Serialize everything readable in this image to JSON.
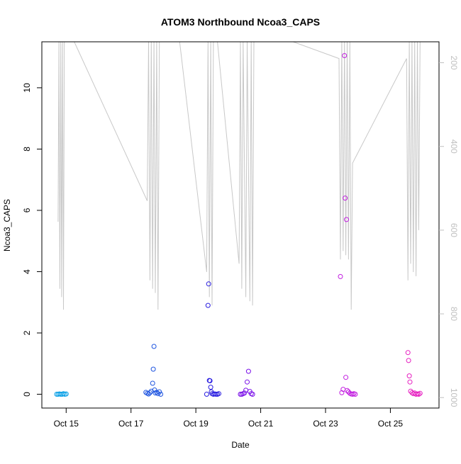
{
  "chart_data": {
    "type": "scatter",
    "title": "ATOM3 Northbound Ncoa3_CAPS",
    "xlabel": "Date",
    "ylabel": "Ncoa3_CAPS",
    "xlim": [
      "2018-10-14 06:00",
      "2018-10-26 12:00"
    ],
    "ylim": [
      -0.45,
      11.5
    ],
    "yticks": [
      0,
      2,
      4,
      6,
      8,
      10
    ],
    "xticks": [
      {
        "label": "Oct 15",
        "date": "2018-10-15"
      },
      {
        "label": "Oct 17",
        "date": "2018-10-17"
      },
      {
        "label": "Oct 19",
        "date": "2018-10-19"
      },
      {
        "label": "Oct 21",
        "date": "2018-10-21"
      },
      {
        "label": "Oct 23",
        "date": "2018-10-23"
      },
      {
        "label": "Oct 25",
        "date": "2018-10-25"
      }
    ],
    "y2lim": [
      1025,
      150
    ],
    "y2ticks": [
      200,
      400,
      600,
      800,
      1000
    ],
    "grid": false,
    "series": [
      {
        "color": "#0ba0e6",
        "points": [
          [
            "2018-10-14 17:00",
            0.0
          ],
          [
            "2018-10-14 18:00",
            0.0
          ],
          [
            "2018-10-14 19:00",
            0.01
          ],
          [
            "2018-10-14 20:00",
            0.0
          ],
          [
            "2018-10-14 21:00",
            0.0
          ],
          [
            "2018-10-14 22:00",
            0.02
          ],
          [
            "2018-10-14 23:00",
            0.0
          ],
          [
            "2018-10-15 00:00",
            0.01
          ]
        ]
      },
      {
        "color": "#1f55e0",
        "points": [
          [
            "2018-10-17 11:00",
            0.06
          ],
          [
            "2018-10-17 12:00",
            0.03
          ],
          [
            "2018-10-17 13:00",
            0.01
          ],
          [
            "2018-10-17 14:00",
            0.05
          ],
          [
            "2018-10-17 15:00",
            0.1
          ],
          [
            "2018-10-17 16:00",
            0.36
          ],
          [
            "2018-10-17 16:30",
            0.82
          ],
          [
            "2018-10-17 17:00",
            1.56
          ],
          [
            "2018-10-17 17:30",
            0.14
          ],
          [
            "2018-10-17 18:00",
            0.04
          ],
          [
            "2018-10-17 19:00",
            0.06
          ],
          [
            "2018-10-17 20:00",
            0.02
          ],
          [
            "2018-10-17 21:00",
            0.08
          ],
          [
            "2018-10-17 22:00",
            0.0
          ]
        ]
      },
      {
        "color": "#2a1ee0",
        "points": [
          [
            "2018-10-19 08:00",
            0.0
          ],
          [
            "2018-10-19 09:00",
            2.9
          ],
          [
            "2018-10-19 09:30",
            3.6
          ],
          [
            "2018-10-19 10:00",
            0.45
          ],
          [
            "2018-10-19 10:30",
            0.44
          ],
          [
            "2018-10-19 11:00",
            0.23
          ],
          [
            "2018-10-19 11:30",
            0.08
          ],
          [
            "2018-10-19 12:00",
            0.02
          ],
          [
            "2018-10-19 13:00",
            0.0
          ],
          [
            "2018-10-19 14:00",
            0.01
          ],
          [
            "2018-10-19 15:00",
            0.0
          ],
          [
            "2018-10-19 16:00",
            0.0
          ],
          [
            "2018-10-19 17:00",
            0.02
          ]
        ]
      },
      {
        "color": "#7a10e8",
        "points": [
          [
            "2018-10-20 09:00",
            0.0
          ],
          [
            "2018-10-20 10:00",
            0.0
          ],
          [
            "2018-10-20 11:00",
            0.02
          ],
          [
            "2018-10-20 12:00",
            0.04
          ],
          [
            "2018-10-20 13:00",
            0.13
          ],
          [
            "2018-10-20 14:00",
            0.4
          ],
          [
            "2018-10-20 15:00",
            0.75
          ],
          [
            "2018-10-20 16:00",
            0.09
          ],
          [
            "2018-10-20 17:00",
            0.02
          ],
          [
            "2018-10-20 18:00",
            0.0
          ]
        ]
      },
      {
        "color": "#c21ee0",
        "points": [
          [
            "2018-10-23 11:00",
            3.84
          ],
          [
            "2018-10-23 12:00",
            0.05
          ],
          [
            "2018-10-23 13:00",
            0.16
          ],
          [
            "2018-10-23 14:00",
            11.05
          ],
          [
            "2018-10-23 14:30",
            6.4
          ],
          [
            "2018-10-23 15:00",
            0.55
          ],
          [
            "2018-10-23 15:30",
            5.7
          ],
          [
            "2018-10-23 16:00",
            0.12
          ],
          [
            "2018-10-23 17:00",
            0.08
          ],
          [
            "2018-10-23 18:00",
            0.03
          ],
          [
            "2018-10-23 19:00",
            0.01
          ],
          [
            "2018-10-23 20:00",
            0.0
          ],
          [
            "2018-10-23 21:00",
            0.02
          ],
          [
            "2018-10-23 22:00",
            0.0
          ]
        ]
      },
      {
        "color": "#e61ec0",
        "points": [
          [
            "2018-10-25 13:00",
            1.36
          ],
          [
            "2018-10-25 13:30",
            1.1
          ],
          [
            "2018-10-25 14:00",
            0.6
          ],
          [
            "2018-10-25 14:30",
            0.4
          ],
          [
            "2018-10-25 15:00",
            0.1
          ],
          [
            "2018-10-25 16:00",
            0.05
          ],
          [
            "2018-10-25 17:00",
            0.02
          ],
          [
            "2018-10-25 18:00",
            0.04
          ],
          [
            "2018-10-25 19:00",
            0.0
          ],
          [
            "2018-10-25 20:00",
            0.01
          ],
          [
            "2018-10-25 21:00",
            0.0
          ],
          [
            "2018-10-25 22:00",
            0.03
          ]
        ]
      }
    ],
    "depth_trace": {
      "color": "#c8c8c8",
      "points": [
        [
          "2018-10-14 18:00",
          580
        ],
        [
          "2018-10-14 18:40",
          150
        ],
        [
          "2018-10-14 19:20",
          740
        ],
        [
          "2018-10-14 20:00",
          150
        ],
        [
          "2018-10-14 20:40",
          760
        ],
        [
          "2018-10-14 21:20",
          150
        ],
        [
          "2018-10-14 22:00",
          790
        ],
        [
          "2018-10-14 22:40",
          150
        ],
        [
          "2018-10-15 06:00",
          150
        ],
        [
          "2018-10-17 12:00",
          530
        ],
        [
          "2018-10-17 13:00",
          150
        ],
        [
          "2018-10-17 14:00",
          720
        ],
        [
          "2018-10-17 15:00",
          150
        ],
        [
          "2018-10-17 16:00",
          740
        ],
        [
          "2018-10-17 17:00",
          150
        ],
        [
          "2018-10-17 18:00",
          750
        ],
        [
          "2018-10-17 19:00",
          150
        ],
        [
          "2018-10-17 20:00",
          790
        ],
        [
          "2018-10-17 21:00",
          150
        ],
        [
          "2018-10-18 12:00",
          150
        ],
        [
          "2018-10-19 08:00",
          700
        ],
        [
          "2018-10-19 09:00",
          150
        ],
        [
          "2018-10-19 10:00",
          760
        ],
        [
          "2018-10-19 11:00",
          150
        ],
        [
          "2018-10-19 12:00",
          780
        ],
        [
          "2018-10-19 13:00",
          150
        ],
        [
          "2018-10-19 16:00",
          150
        ],
        [
          "2018-10-20 08:00",
          680
        ],
        [
          "2018-10-20 09:00",
          150
        ],
        [
          "2018-10-20 10:00",
          740
        ],
        [
          "2018-10-20 11:00",
          150
        ],
        [
          "2018-10-20 13:00",
          760
        ],
        [
          "2018-10-20 14:00",
          150
        ],
        [
          "2018-10-20 16:00",
          770
        ],
        [
          "2018-10-20 17:00",
          150
        ],
        [
          "2018-10-20 18:00",
          780
        ],
        [
          "2018-10-20 19:00",
          150
        ],
        [
          "2018-10-22 00:00",
          150
        ],
        [
          "2018-10-23 10:00",
          190
        ],
        [
          "2018-10-23 11:00",
          670
        ],
        [
          "2018-10-23 12:00",
          150
        ],
        [
          "2018-10-23 13:00",
          650
        ],
        [
          "2018-10-23 14:00",
          150
        ],
        [
          "2018-10-23 15:00",
          660
        ],
        [
          "2018-10-23 16:00",
          150
        ],
        [
          "2018-10-23 17:00",
          670
        ],
        [
          "2018-10-23 18:00",
          150
        ],
        [
          "2018-10-23 19:00",
          790
        ],
        [
          "2018-10-23 20:00",
          440
        ],
        [
          "2018-10-25 12:00",
          190
        ],
        [
          "2018-10-25 13:00",
          720
        ],
        [
          "2018-10-25 14:00",
          150
        ],
        [
          "2018-10-25 15:00",
          680
        ],
        [
          "2018-10-25 16:00",
          150
        ],
        [
          "2018-10-25 17:00",
          700
        ],
        [
          "2018-10-25 18:00",
          150
        ],
        [
          "2018-10-25 19:00",
          710
        ],
        [
          "2018-10-25 20:00",
          150
        ],
        [
          "2018-10-25 21:00",
          600
        ],
        [
          "2018-10-25 22:00",
          150
        ]
      ]
    }
  }
}
